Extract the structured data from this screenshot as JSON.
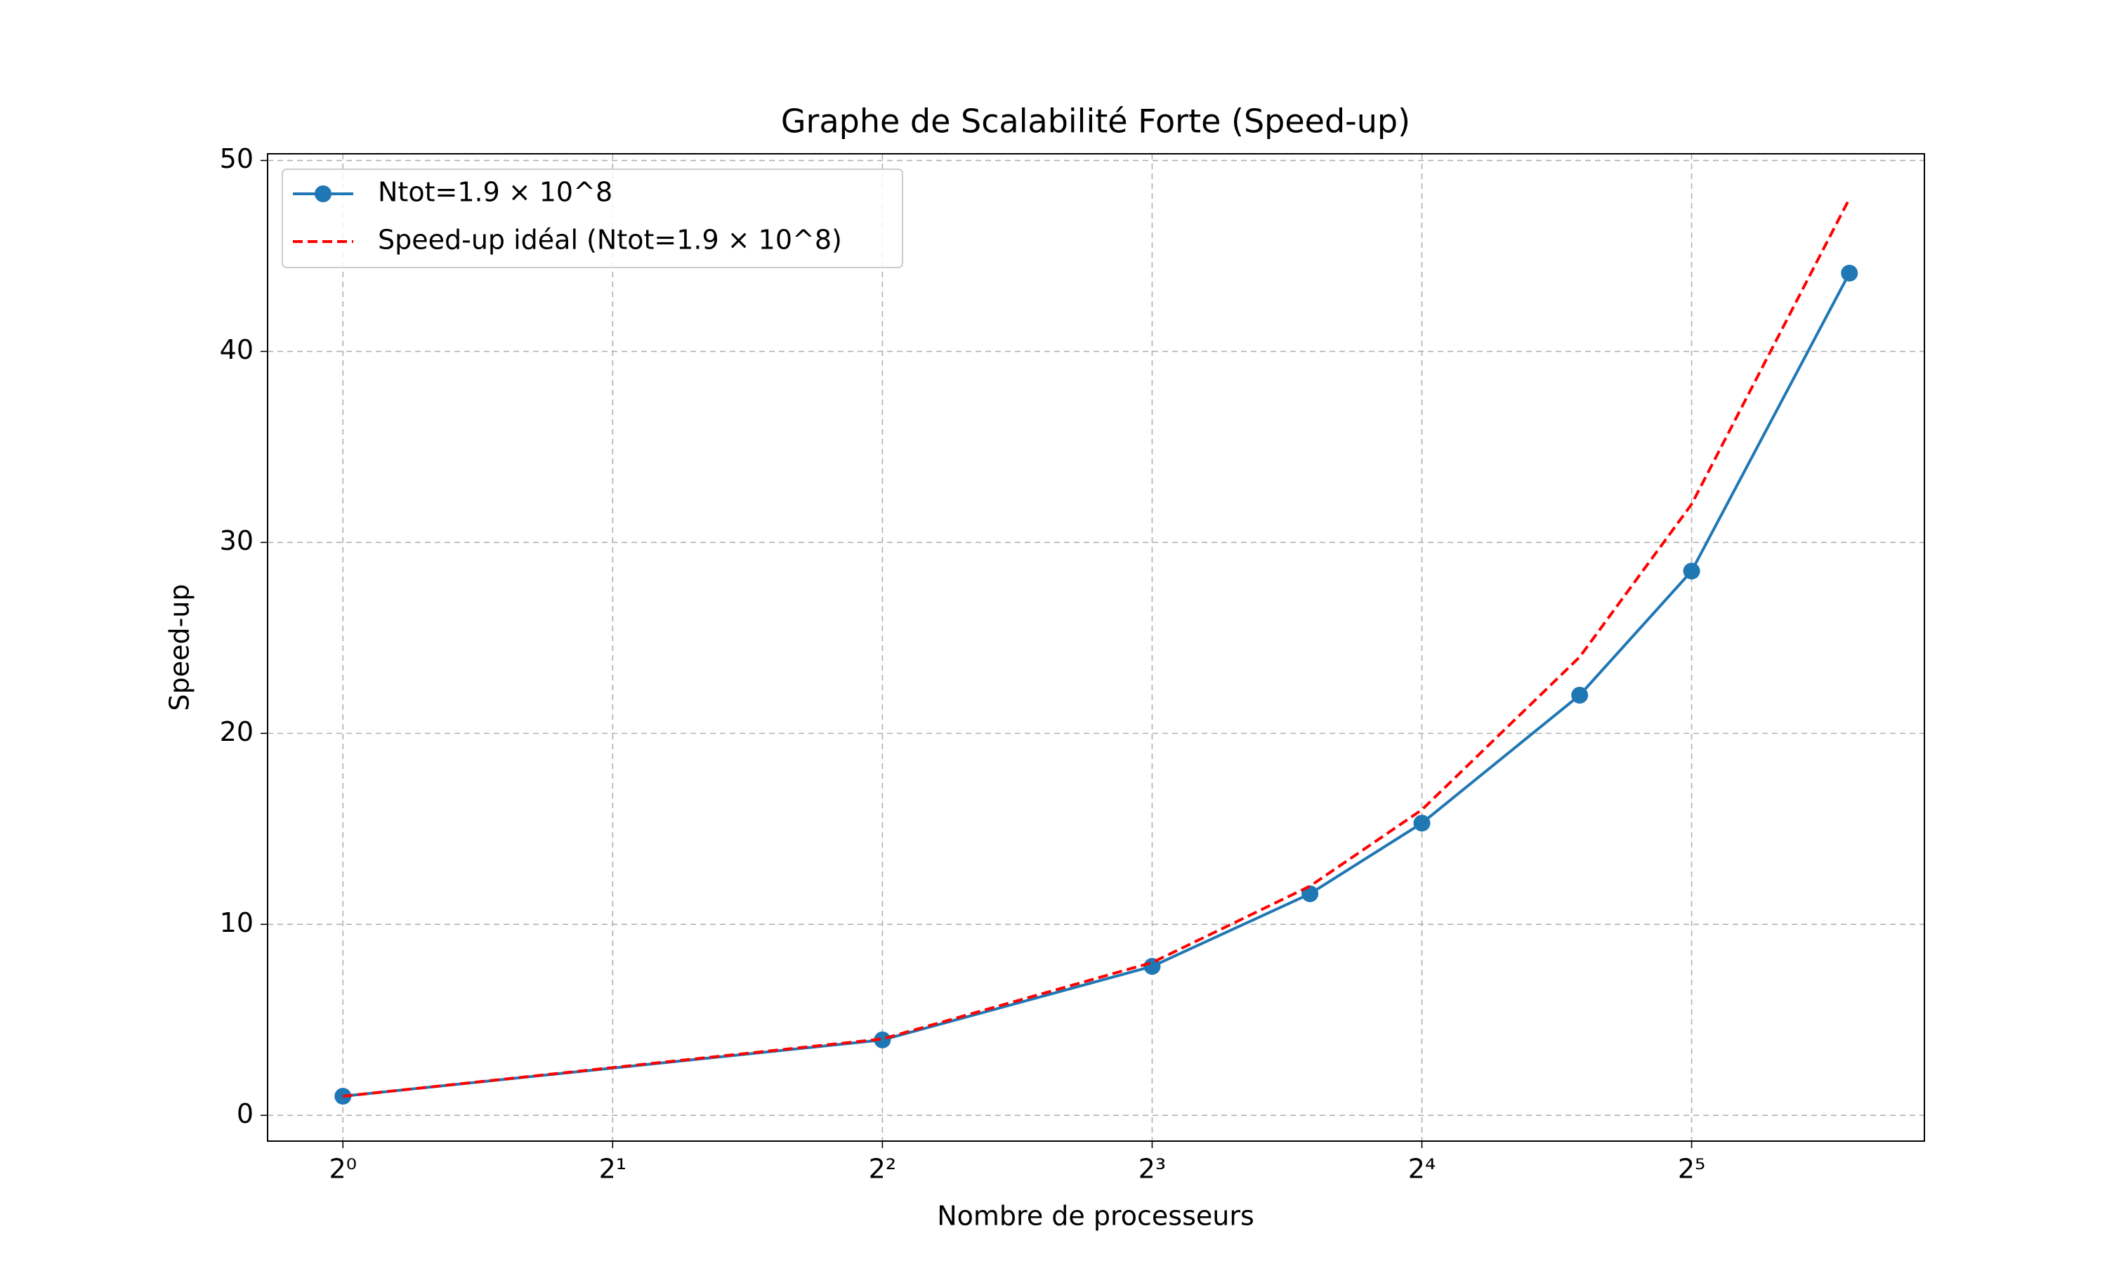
{
  "chart_data": {
    "type": "line",
    "title": "Graphe de Scalabilité Forte (Speed-up)",
    "x_label": "Nombre de processeurs",
    "y_label": "Speed-up",
    "x": [
      1,
      4,
      8,
      12,
      16,
      24,
      32,
      48
    ],
    "x_scale": "log2",
    "series": [
      {
        "name": "Ntot=1.9 × 10^8",
        "color": "#1f77b4",
        "linestyle": "solid",
        "marker": "o",
        "values": [
          1,
          3.95,
          7.8,
          11.6,
          15.3,
          22.0,
          28.5,
          44.1
        ]
      },
      {
        "name": "Speed-up idéal (Ntot=1.9 × 10^8)",
        "color": "#ff0000",
        "linestyle": "dashed",
        "marker": "none",
        "values": [
          1,
          4,
          8,
          12,
          16,
          24,
          32,
          48
        ]
      }
    ],
    "xlim": [
      0.824,
      58.2
    ],
    "xticks": [
      {
        "value": 1,
        "label": "2⁰"
      },
      {
        "value": 2,
        "label": "2¹"
      },
      {
        "value": 4,
        "label": "2²"
      },
      {
        "value": 8,
        "label": "2³"
      },
      {
        "value": 16,
        "label": "2⁴"
      },
      {
        "value": 32,
        "label": "2⁵"
      }
    ],
    "ylim": [
      -1.35,
      50.35
    ],
    "yticks": [
      0,
      10,
      20,
      30,
      40,
      50
    ],
    "grid": true,
    "legend": "upper-left"
  }
}
